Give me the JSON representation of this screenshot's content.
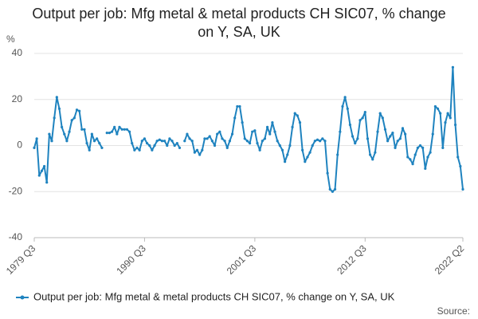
{
  "chart_data": {
    "type": "line",
    "title": "Output per job: Mfg metal & metal products CH SIC07, % change on Y, SA, UK",
    "y_label": "%",
    "source_label": "Source:",
    "categories": [
      "1979 Q3",
      null,
      null,
      null,
      null,
      null,
      null,
      null,
      null,
      null,
      null,
      null,
      null,
      null,
      null,
      null,
      null,
      null,
      null,
      null,
      null,
      null,
      null,
      null,
      null,
      null,
      null,
      null,
      null,
      null,
      null,
      null,
      null,
      null,
      null,
      null,
      null,
      null,
      null,
      null,
      null,
      null,
      null,
      null,
      "1990 Q3",
      null,
      null,
      null,
      null,
      null,
      null,
      null,
      null,
      null,
      null,
      null,
      null,
      null,
      null,
      null,
      null,
      null,
      null,
      null,
      null,
      null,
      null,
      null,
      null,
      null,
      null,
      null,
      null,
      null,
      null,
      null,
      null,
      null,
      null,
      null,
      null,
      null,
      null,
      null,
      null,
      null,
      null,
      null,
      "2001 Q3",
      null,
      null,
      null,
      null,
      null,
      null,
      null,
      null,
      null,
      null,
      null,
      null,
      null,
      null,
      null,
      null,
      null,
      null,
      null,
      null,
      null,
      null,
      null,
      null,
      null,
      null,
      null,
      null,
      null,
      null,
      null,
      null,
      null,
      null,
      null,
      null,
      null,
      null,
      null,
      null,
      null,
      null,
      null,
      "2012 Q3",
      null,
      null,
      null,
      null,
      null,
      null,
      null,
      null,
      null,
      null,
      null,
      null,
      null,
      null,
      null,
      null,
      null,
      null,
      null,
      null,
      null,
      null,
      null,
      null,
      null,
      null,
      null,
      null,
      null,
      null,
      null,
      null,
      null,
      null,
      null,
      null,
      null,
      null,
      "2022 Q2"
    ],
    "series": [
      {
        "name": "Output per job: Mfg metal & metal products CH SIC07, % change on Y, SA, UK",
        "color": "#1f83bf",
        "values": [
          -1,
          3,
          -13,
          -11,
          -9,
          -16,
          5,
          2,
          12,
          21,
          16,
          8,
          5,
          2,
          6,
          11,
          12,
          15.5,
          15,
          7,
          7,
          1,
          -2,
          5,
          2,
          3,
          1,
          -1,
          null,
          5.5,
          5.5,
          6,
          8,
          5,
          8,
          7,
          7,
          7,
          6,
          1,
          -2,
          -1,
          -2,
          2,
          3,
          1,
          0,
          -2,
          0,
          2,
          2.5,
          2,
          2,
          0,
          3,
          2,
          0,
          1,
          -1,
          null,
          2,
          5,
          3,
          2,
          -3,
          -2,
          -4,
          -2,
          3,
          3,
          4,
          2,
          0,
          5,
          6,
          3,
          2,
          -1,
          2,
          5,
          12,
          17,
          17,
          10,
          3,
          2,
          1,
          6,
          6.5,
          1,
          -2,
          2,
          3,
          8,
          5,
          10,
          6,
          2,
          0,
          -2,
          -7,
          -4,
          0,
          8,
          14,
          13,
          10,
          -2,
          -7,
          -5,
          -3,
          0,
          2,
          2.5,
          2,
          3,
          2,
          -12,
          -19,
          -20,
          -19,
          -4,
          6,
          17,
          21,
          16,
          9,
          4,
          1,
          3,
          11,
          12,
          14.5,
          3,
          -4,
          -6,
          -3,
          6,
          14,
          12,
          7,
          2,
          4,
          5.5,
          -1,
          2,
          3,
          7.5,
          5,
          -5,
          -6,
          -8,
          -4,
          -1,
          0,
          -1,
          -10,
          -5,
          -3,
          5,
          17,
          16,
          14,
          -1,
          10,
          14,
          12,
          34,
          9,
          -5,
          -9,
          -19
        ]
      }
    ],
    "ylim": [
      -40,
      40
    ],
    "yticks": [
      -40,
      -20,
      0,
      20,
      40
    ],
    "grid": true
  }
}
